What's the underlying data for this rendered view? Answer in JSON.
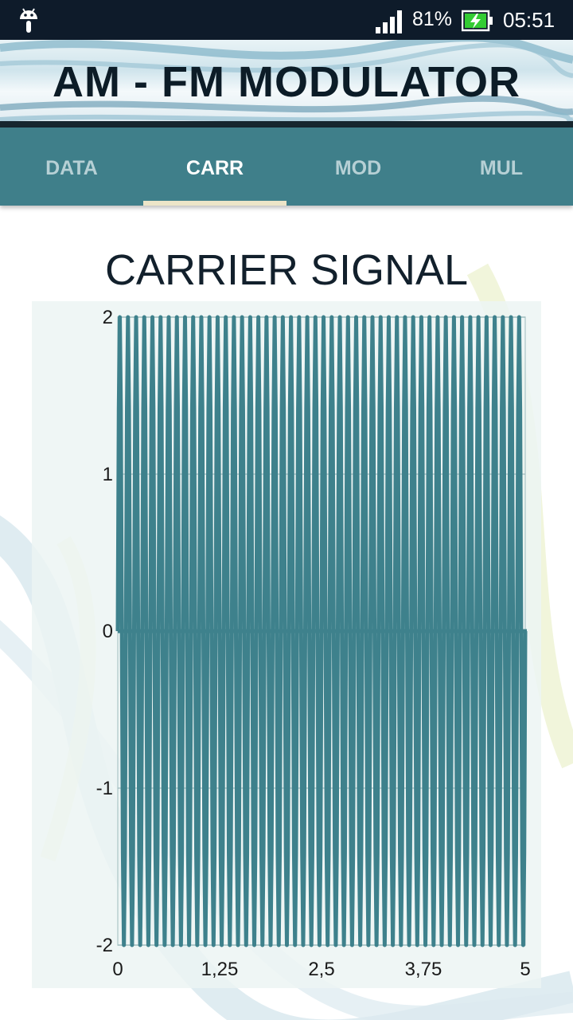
{
  "status_bar": {
    "battery_percent": "81%",
    "time": "05:51",
    "icons": [
      "android-icon",
      "signal-icon",
      "battery-charging-icon"
    ]
  },
  "banner": {
    "title": "AM - FM MODULATOR"
  },
  "tabs": [
    {
      "label": "DATA",
      "active": false
    },
    {
      "label": "CARR",
      "active": true
    },
    {
      "label": "MOD",
      "active": false
    },
    {
      "label": "MUL",
      "active": false
    }
  ],
  "page": {
    "title": "CARRIER SIGNAL"
  },
  "colors": {
    "accent": "#3f7f8a",
    "signal": "#3e818c",
    "status_bar": "#0e1b2a",
    "tab_indicator": "#ece5c8"
  },
  "chart_data": {
    "type": "line",
    "title": "",
    "xlabel": "",
    "ylabel": "",
    "xlim": [
      0,
      5
    ],
    "ylim": [
      -2,
      2
    ],
    "x_ticks": [
      "0",
      "1,25",
      "2,5",
      "3,75",
      "5"
    ],
    "y_ticks": [
      "2",
      "1",
      "0",
      "-1",
      "-2"
    ],
    "grid": true,
    "series": [
      {
        "amplitude": 2,
        "cycles": 50,
        "x_start": 0,
        "x_end": 5
      }
    ]
  }
}
